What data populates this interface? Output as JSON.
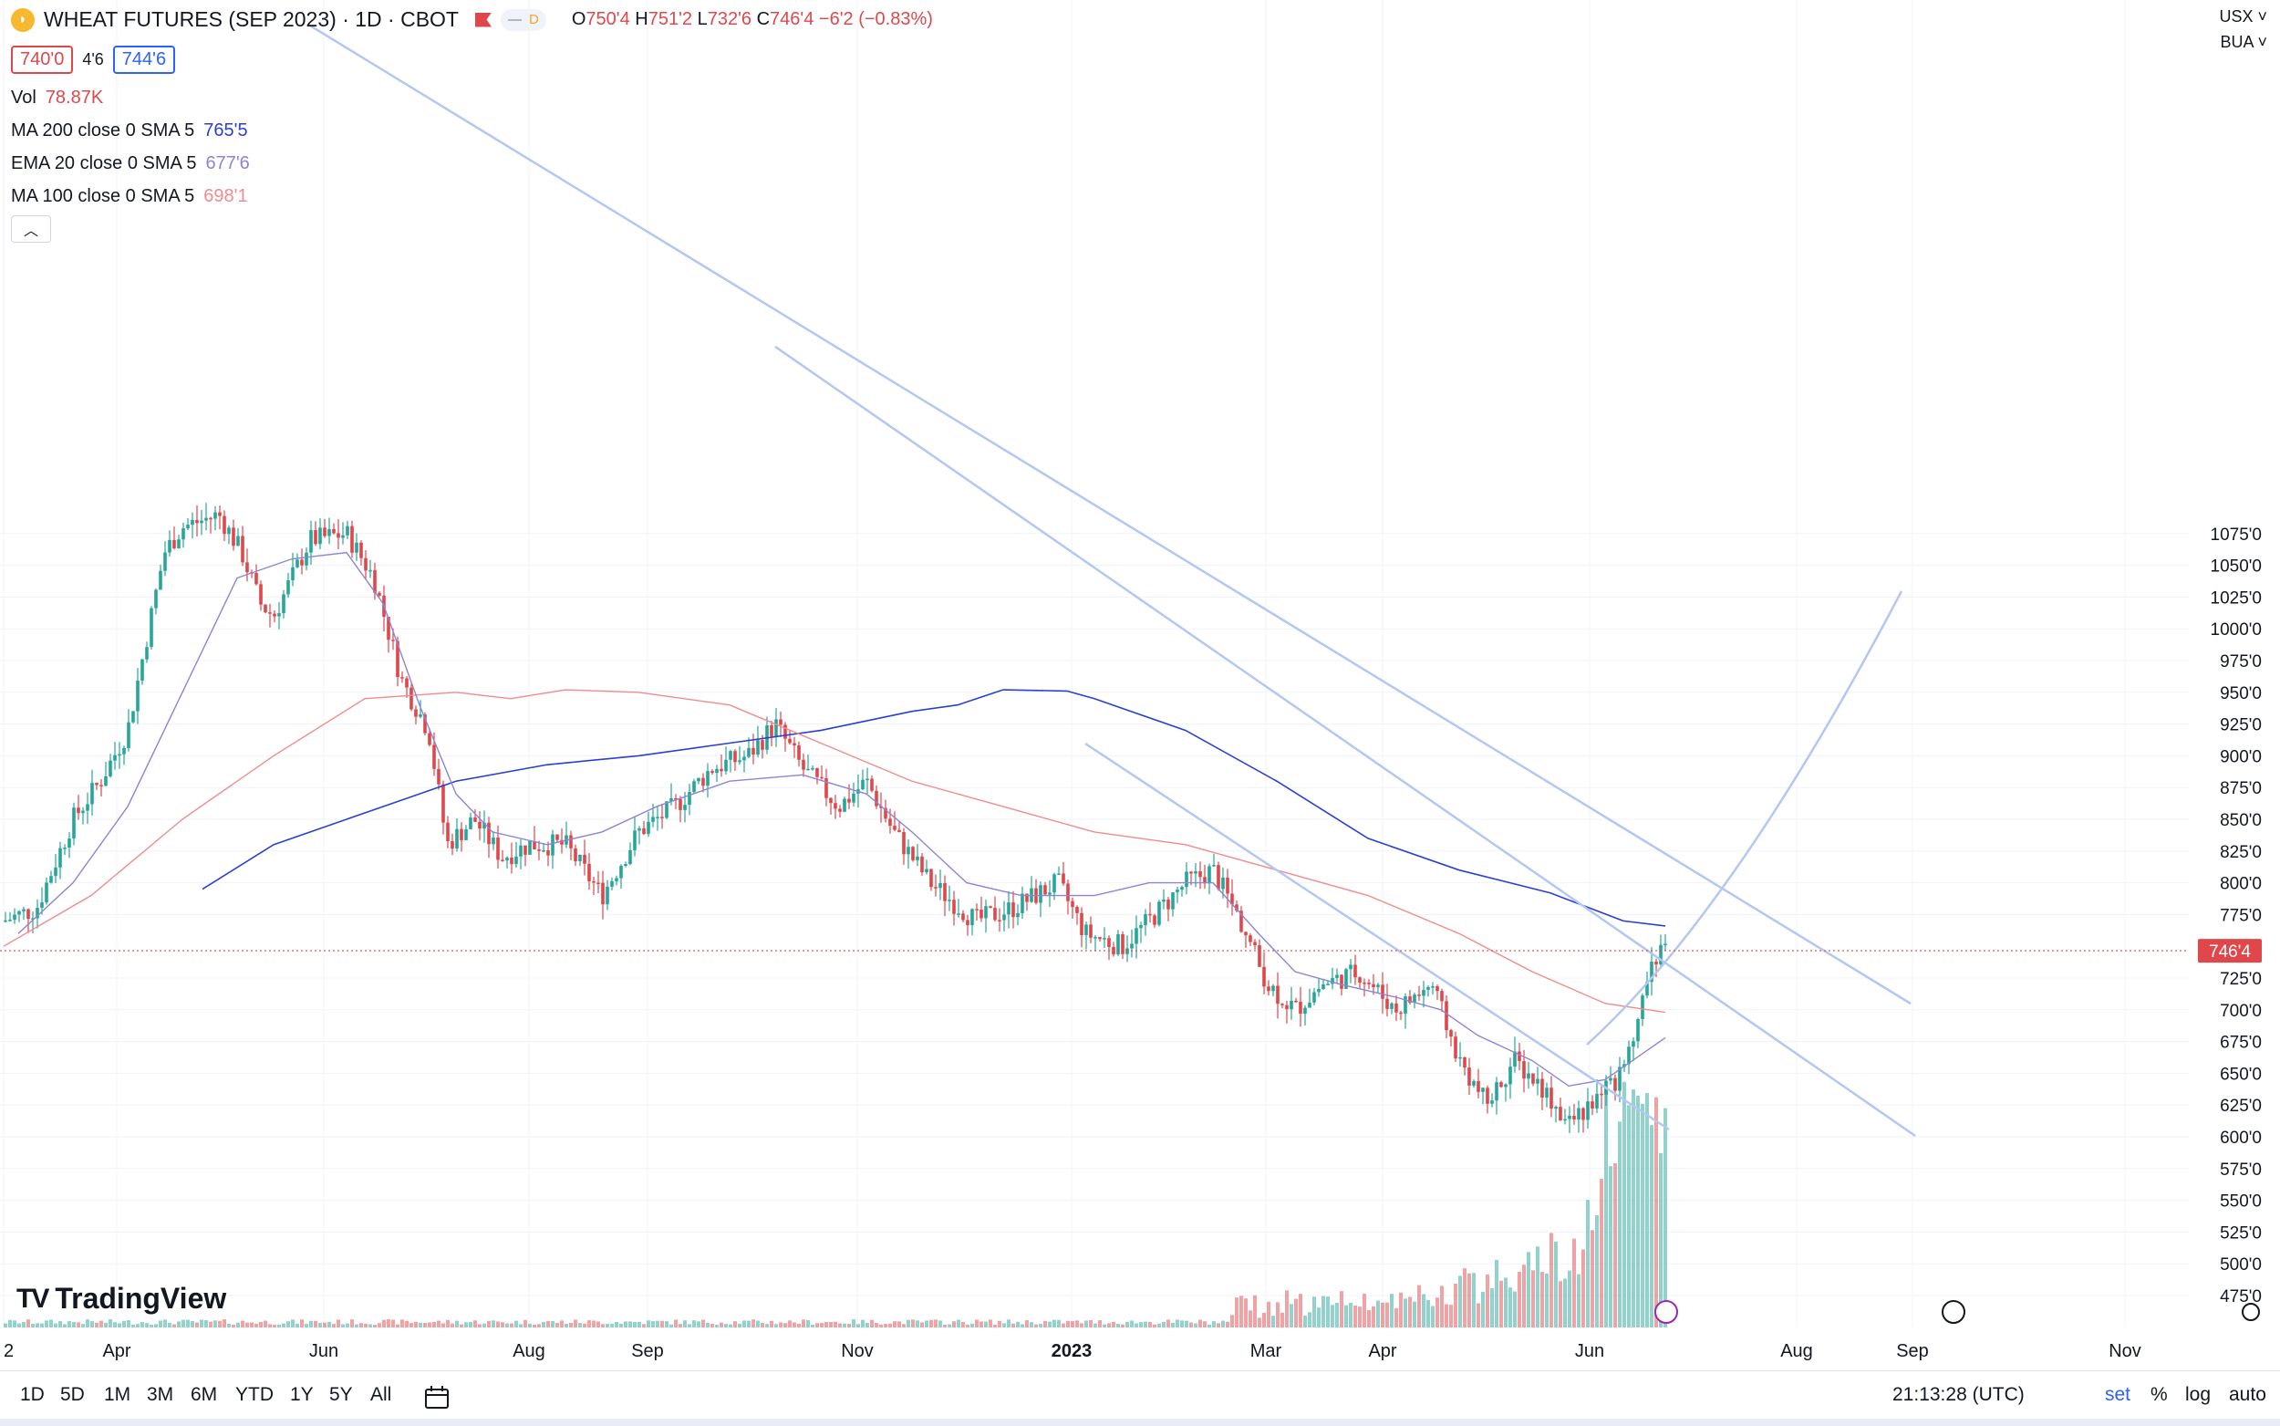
{
  "symbol": {
    "title": "WHEAT FUTURES (SEP 2023) · 1D · CBOT",
    "icon": "wheat-symbol-icon",
    "delay_badge": "D",
    "ohlc": {
      "o_label": "O",
      "o": "750'4",
      "h_label": "H",
      "h": "751'2",
      "l_label": "L",
      "l": "732'6",
      "c_label": "C",
      "c": "746'4",
      "change": "−6'2 (−0.83%)"
    }
  },
  "quote": {
    "bid": "740'0",
    "spread": "4'6",
    "ask": "744'6"
  },
  "indicators": [
    {
      "name": "Vol",
      "params": "",
      "value": "78.87K",
      "color": "#e0474b"
    },
    {
      "name": "MA",
      "params": "200 close 0 SMA 5",
      "value": "765'5",
      "color": "#2a3fd6"
    },
    {
      "name": "EMA",
      "params": "20 close 0 SMA 5",
      "value": "677'6",
      "color": "#8c84d6"
    },
    {
      "name": "MA",
      "params": "100 close 0 SMA 5",
      "value": "698'1",
      "color": "#f08c8c"
    }
  ],
  "scale": {
    "currency": "USX",
    "unit": "BUA",
    "price_labels": [
      "1075'0",
      "1050'0",
      "1025'0",
      "1000'0",
      "975'0",
      "950'0",
      "925'0",
      "900'0",
      "875'0",
      "850'0",
      "825'0",
      "800'0",
      "775'0",
      "725'0",
      "700'0",
      "675'0",
      "650'0",
      "625'0",
      "600'0",
      "575'0",
      "550'0",
      "525'0",
      "500'0",
      "475'0"
    ],
    "last_price": "746'4"
  },
  "time_axis": [
    "2",
    "Apr",
    "Jun",
    "Aug",
    "Sep",
    "Nov",
    "2023",
    "Mar",
    "Apr",
    "Jun",
    "Aug",
    "Sep",
    "Nov"
  ],
  "toolbar": {
    "timeframes": [
      "1D",
      "5D",
      "1M",
      "3M",
      "6M",
      "YTD",
      "1Y",
      "5Y",
      "All"
    ],
    "clock": "21:13:28 (UTC)",
    "session": "set",
    "percent": "%",
    "log": "log",
    "auto": "auto"
  },
  "watermark": "TradingView",
  "colors": {
    "up": "#26a69a",
    "down": "#e0474b",
    "trendline": "#b3c7f2",
    "ma200": "#2a3fd6",
    "ema20": "#8c84d6",
    "ma100": "#f08c8c"
  },
  "chart_data": {
    "type": "candlestick",
    "close_series_approx": {
      "dates": [
        "2022-03",
        "2022-04",
        "2022-05",
        "2022-06",
        "2022-07",
        "2022-08",
        "2022-09",
        "2022-10",
        "2022-11",
        "2022-12",
        "2023-01",
        "2023-02",
        "2023-03",
        "2023-04",
        "2023-05",
        "2023-06"
      ],
      "values": [
        780,
        880,
        1060,
        1050,
        830,
        820,
        900,
        890,
        840,
        760,
        780,
        810,
        700,
        690,
        620,
        746
      ]
    },
    "ylim": [
      460,
      1090
    ]
  }
}
